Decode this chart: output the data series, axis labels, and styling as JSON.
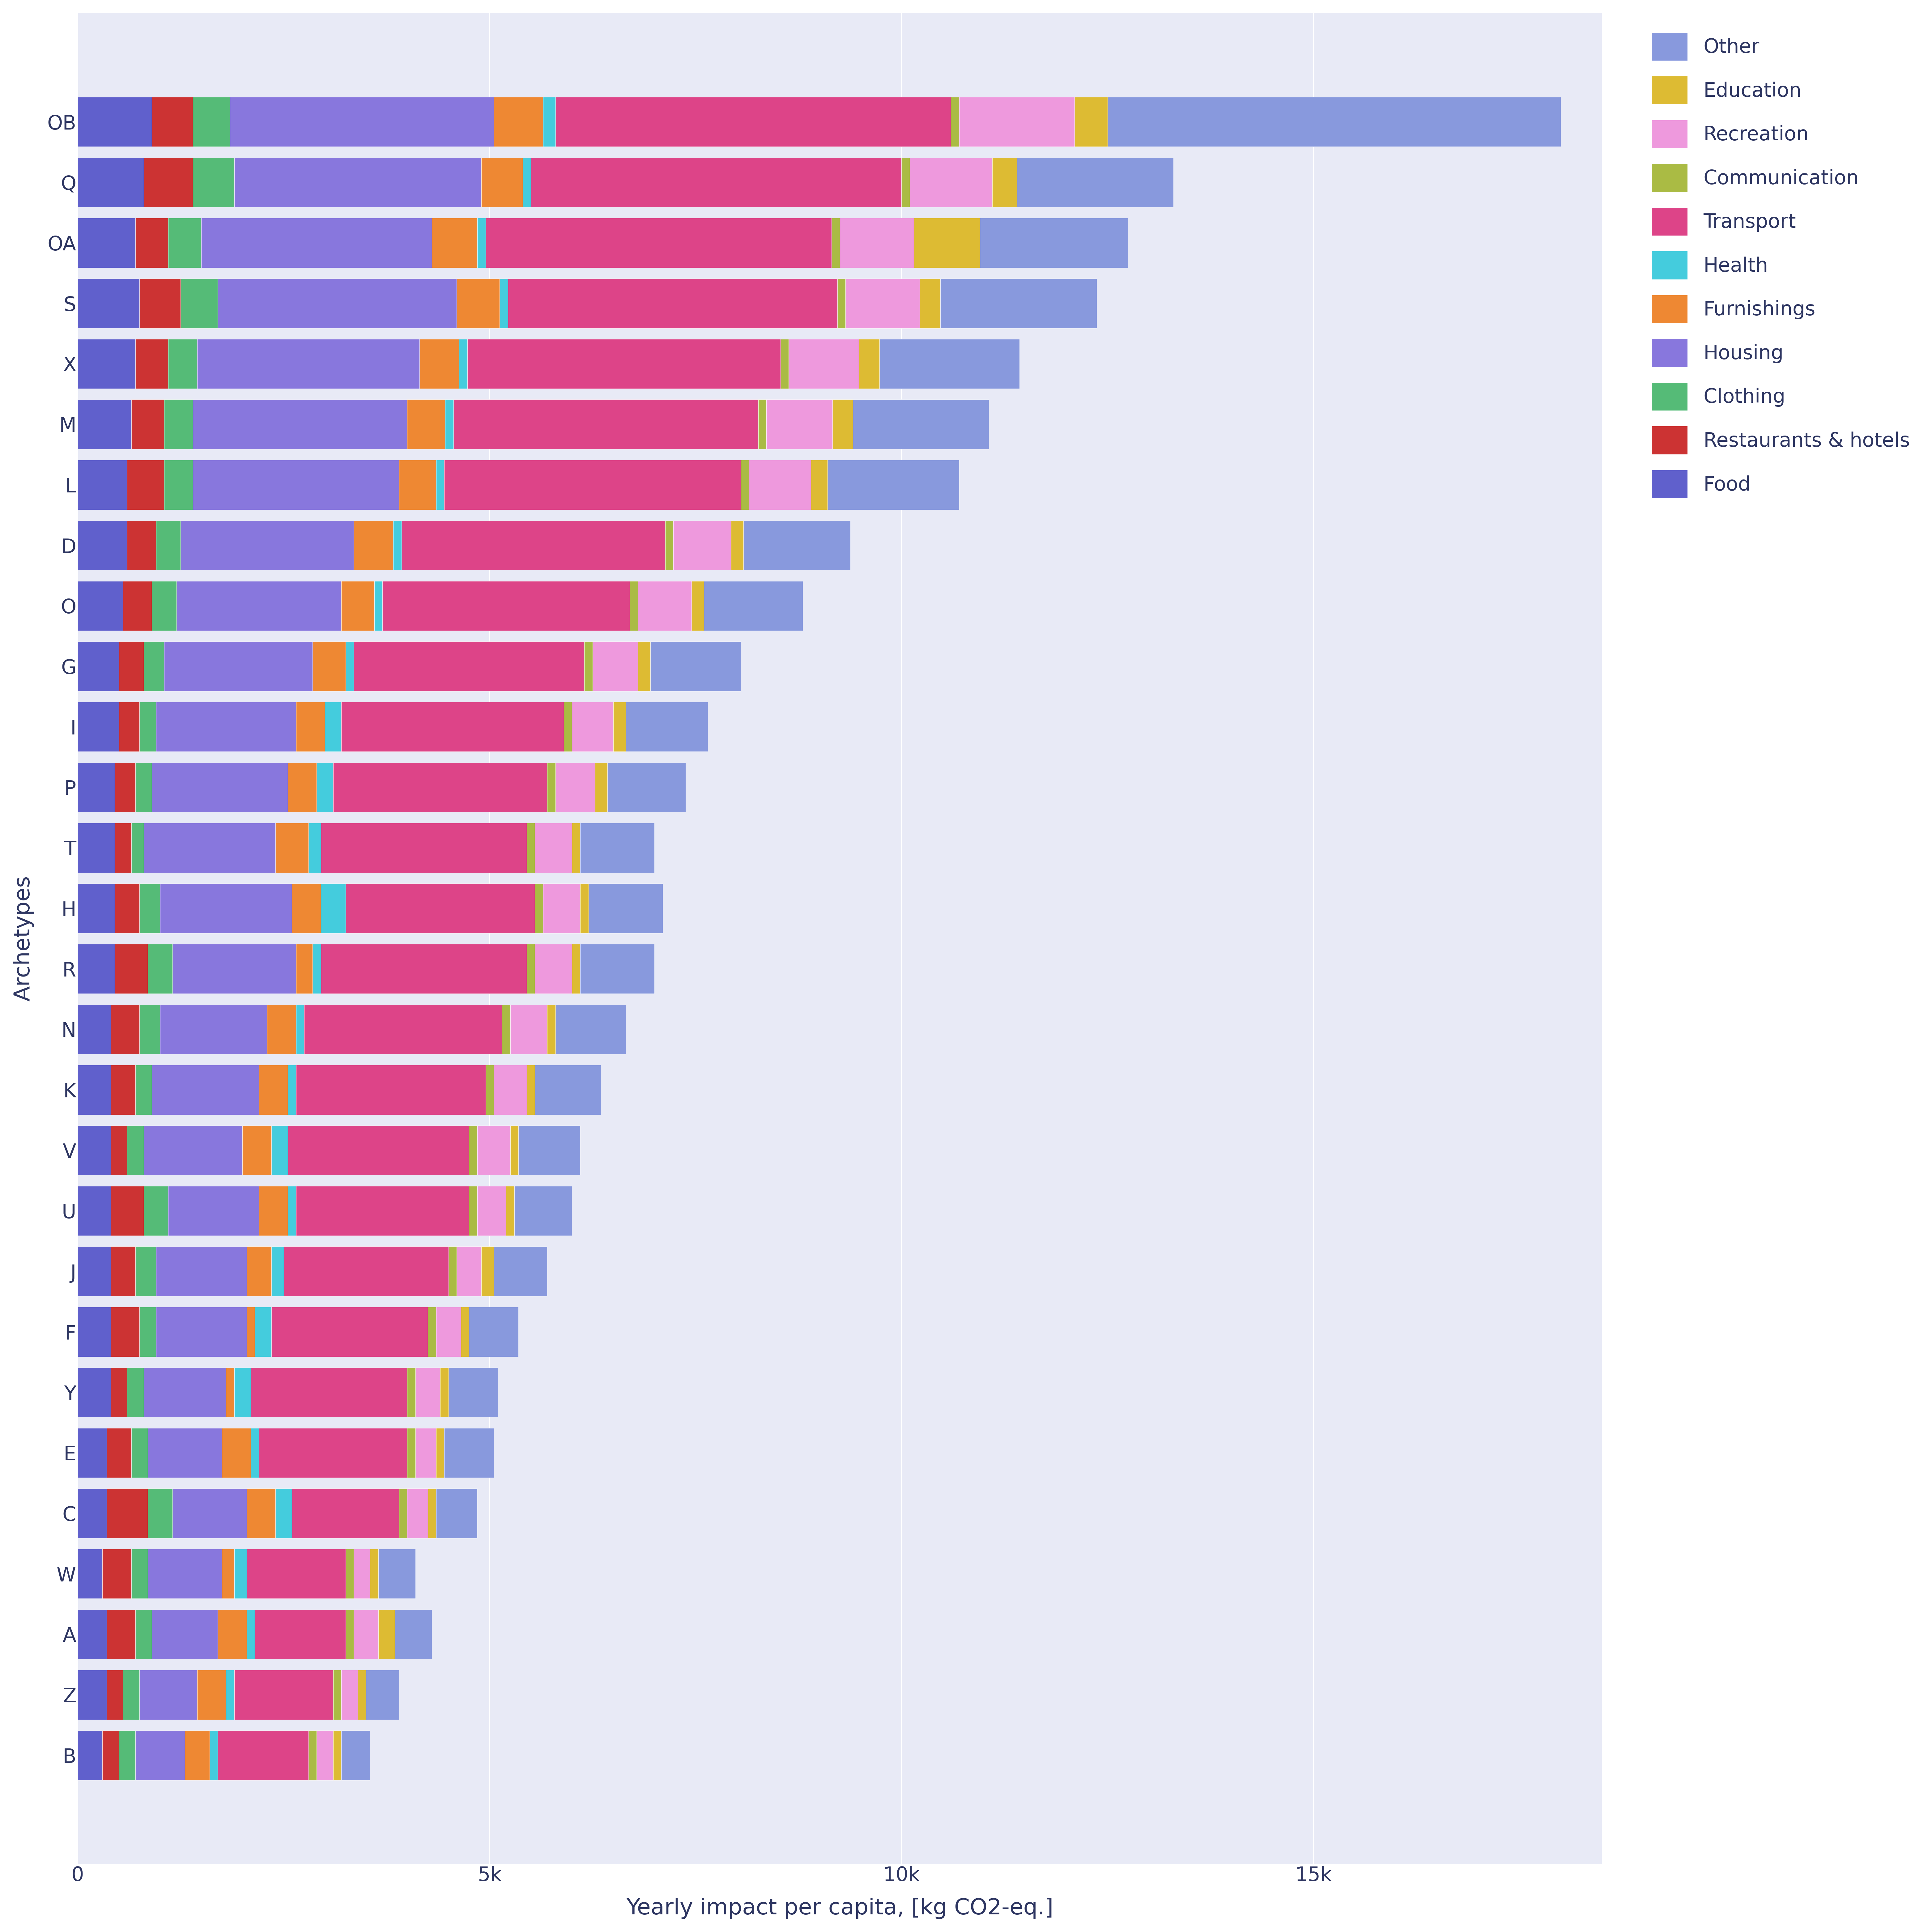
{
  "archetypes": [
    "OB",
    "Q",
    "OA",
    "S",
    "X",
    "M",
    "L",
    "D",
    "O",
    "G",
    "I",
    "P",
    "T",
    "H",
    "R",
    "N",
    "K",
    "V",
    "U",
    "J",
    "F",
    "Y",
    "E",
    "C",
    "W",
    "A",
    "Z",
    "B"
  ],
  "sectors": [
    "Food",
    "Restaurants & hotels",
    "Clothing",
    "Housing",
    "Furnishings",
    "Health",
    "Transport",
    "Communication",
    "Recreation",
    "Education",
    "Other"
  ],
  "colors": [
    "#6060cc",
    "#cc3333",
    "#55bb77",
    "#8877dd",
    "#ee8833",
    "#44ccdd",
    "#dd4488",
    "#aabb44",
    "#ee99dd",
    "#ddbb33",
    "#8899dd"
  ],
  "data": {
    "OB": [
      900,
      500,
      450,
      3200,
      600,
      150,
      4800,
      100,
      1400,
      400,
      5500
    ],
    "Q": [
      800,
      600,
      500,
      3000,
      500,
      100,
      4500,
      100,
      1000,
      300,
      1900
    ],
    "OA": [
      700,
      400,
      400,
      2800,
      550,
      100,
      4200,
      100,
      900,
      800,
      1800
    ],
    "S": [
      750,
      500,
      450,
      2900,
      520,
      100,
      4000,
      100,
      900,
      250,
      1900
    ],
    "X": [
      700,
      400,
      350,
      2700,
      480,
      100,
      3800,
      100,
      850,
      250,
      1700
    ],
    "M": [
      650,
      400,
      350,
      2600,
      460,
      100,
      3700,
      100,
      800,
      250,
      1650
    ],
    "L": [
      600,
      450,
      350,
      2500,
      450,
      100,
      3600,
      100,
      750,
      200,
      1600
    ],
    "D": [
      600,
      350,
      300,
      2100,
      480,
      100,
      3200,
      100,
      700,
      150,
      1300
    ],
    "O": [
      550,
      350,
      300,
      2000,
      400,
      100,
      3000,
      100,
      650,
      150,
      1200
    ],
    "G": [
      500,
      300,
      250,
      1800,
      400,
      100,
      2800,
      100,
      550,
      150,
      1100
    ],
    "I": [
      500,
      250,
      200,
      1700,
      350,
      200,
      2700,
      100,
      500,
      150,
      1000
    ],
    "P": [
      450,
      250,
      200,
      1650,
      350,
      200,
      2600,
      100,
      480,
      150,
      950
    ],
    "T": [
      450,
      200,
      150,
      1600,
      400,
      150,
      2500,
      100,
      450,
      100,
      900
    ],
    "H": [
      450,
      300,
      250,
      1600,
      350,
      300,
      2300,
      100,
      450,
      100,
      900
    ],
    "R": [
      450,
      400,
      300,
      1500,
      200,
      100,
      2500,
      100,
      450,
      100,
      900
    ],
    "N": [
      400,
      350,
      250,
      1300,
      350,
      100,
      2400,
      100,
      450,
      100,
      850
    ],
    "K": [
      400,
      300,
      200,
      1300,
      350,
      100,
      2300,
      100,
      400,
      100,
      800
    ],
    "V": [
      400,
      200,
      200,
      1200,
      350,
      200,
      2200,
      100,
      400,
      100,
      750
    ],
    "U": [
      400,
      400,
      300,
      1100,
      350,
      100,
      2100,
      100,
      350,
      100,
      700
    ],
    "J": [
      400,
      300,
      250,
      1100,
      300,
      150,
      2000,
      100,
      300,
      150,
      650
    ],
    "F": [
      400,
      350,
      200,
      1100,
      100,
      200,
      1900,
      100,
      300,
      100,
      600
    ],
    "Y": [
      400,
      200,
      200,
      1000,
      100,
      200,
      1900,
      100,
      300,
      100,
      600
    ],
    "E": [
      350,
      300,
      200,
      900,
      350,
      100,
      1800,
      100,
      250,
      100,
      600
    ],
    "C": [
      350,
      500,
      300,
      900,
      350,
      200,
      1300,
      100,
      250,
      100,
      500
    ],
    "W": [
      300,
      350,
      200,
      900,
      150,
      150,
      1200,
      100,
      200,
      100,
      450
    ],
    "A": [
      350,
      350,
      200,
      800,
      350,
      100,
      1100,
      100,
      300,
      200,
      450
    ],
    "Z": [
      350,
      200,
      200,
      700,
      350,
      100,
      1200,
      100,
      200,
      100,
      400
    ],
    "B": [
      300,
      200,
      200,
      600,
      300,
      100,
      1100,
      100,
      200,
      100,
      350
    ]
  },
  "xlabel": "Yearly impact per capita, [kg CO2-eq.]",
  "ylabel": "Archetypes",
  "xlim": [
    0,
    18500
  ],
  "xticks": [
    0,
    5000,
    10000,
    15000
  ],
  "xticklabels": [
    "0",
    "5k",
    "10k",
    "15k"
  ],
  "background_color": "#e8eaf6",
  "plot_bg_color": "#dde0f0",
  "legend_labels": [
    "Other",
    "Education",
    "Recreation",
    "Communication",
    "Transport",
    "Health",
    "Furnishings",
    "Housing",
    "Clothing",
    "Restaurants & hotels",
    "Food"
  ],
  "legend_colors": [
    "#8899dd",
    "#ddbb33",
    "#ee99dd",
    "#aabb44",
    "#dd4488",
    "#44ccdd",
    "#ee8833",
    "#8877dd",
    "#55bb77",
    "#cc3333",
    "#6060cc"
  ],
  "axis_label_color": "#2d3561",
  "tick_label_color": "#2d3561",
  "title_fontsize": 28,
  "axis_fontsize": 52,
  "tick_fontsize": 46,
  "legend_fontsize": 46,
  "bar_height": 0.82
}
